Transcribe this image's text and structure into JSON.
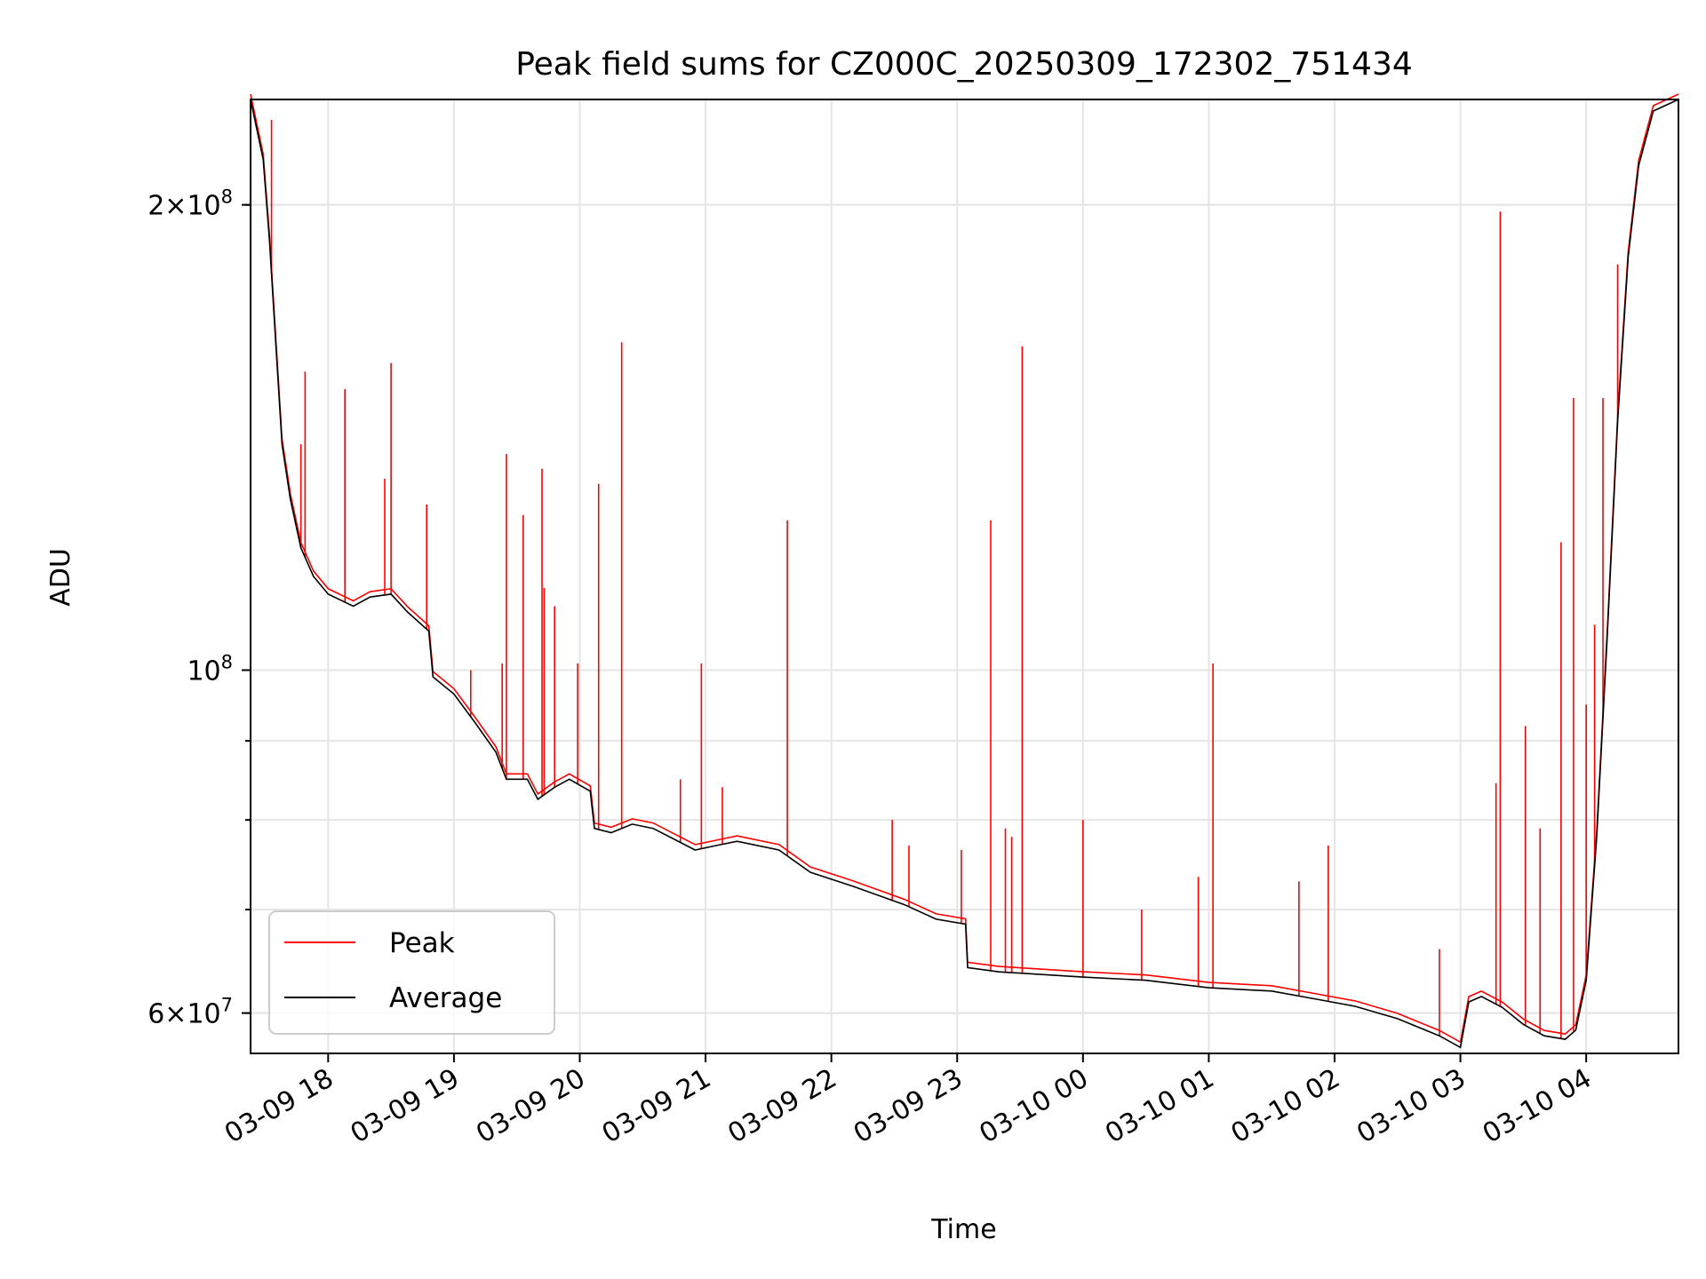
{
  "chart_data": {
    "type": "line",
    "title": "Peak field sums for CZ000C_20250309_172302_751434",
    "xlabel": "Time",
    "ylabel": "ADU",
    "x_scale": "time",
    "y_scale": "log",
    "xlim": [
      "2025-03-09 17:23",
      "2025-03-10 04:44"
    ],
    "ylim": [
      56500000,
      234000000
    ],
    "x_ticks": [
      {
        "value": "2025-03-09 18:00",
        "label": "03-09 18"
      },
      {
        "value": "2025-03-09 19:00",
        "label": "03-09 19"
      },
      {
        "value": "2025-03-09 20:00",
        "label": "03-09 20"
      },
      {
        "value": "2025-03-09 21:00",
        "label": "03-09 21"
      },
      {
        "value": "2025-03-09 22:00",
        "label": "03-09 22"
      },
      {
        "value": "2025-03-09 23:00",
        "label": "03-09 23"
      },
      {
        "value": "2025-03-10 00:00",
        "label": "03-10 00"
      },
      {
        "value": "2025-03-10 01:00",
        "label": "03-10 01"
      },
      {
        "value": "2025-03-10 02:00",
        "label": "03-10 02"
      },
      {
        "value": "2025-03-10 03:00",
        "label": "03-10 03"
      },
      {
        "value": "2025-03-10 04:00",
        "label": "03-10 04"
      }
    ],
    "y_major_ticks": [
      {
        "value": 60000000,
        "mant": "6",
        "exp": "7"
      },
      {
        "value": 100000000,
        "mant": "",
        "exp": "8"
      },
      {
        "value": 200000000,
        "mant": "2",
        "exp": "8"
      }
    ],
    "y_minor_ticks": [
      60000000,
      70000000,
      80000000,
      90000000,
      200000000
    ],
    "grid": true,
    "legend": {
      "position": "lower-left"
    },
    "series": [
      {
        "name": "Average",
        "color": "#000000",
        "points": [
          [
            "2025-03-09 17:23",
            234000000
          ],
          [
            "2025-03-09 17:29",
            214000000
          ],
          [
            "2025-03-09 17:32",
            190000000
          ],
          [
            "2025-03-09 17:35",
            163000000
          ],
          [
            "2025-03-09 17:38",
            140000000
          ],
          [
            "2025-03-09 17:42",
            129000000
          ],
          [
            "2025-03-09 17:47",
            120000000
          ],
          [
            "2025-03-09 17:53",
            115000000
          ],
          [
            "2025-03-09 18:00",
            112000000
          ],
          [
            "2025-03-09 18:12",
            110000000
          ],
          [
            "2025-03-09 18:20",
            111500000
          ],
          [
            "2025-03-09 18:30",
            112000000
          ],
          [
            "2025-03-09 18:38",
            109000000
          ],
          [
            "2025-03-09 18:48",
            106000000
          ],
          [
            "2025-03-09 18:50",
            99000000
          ],
          [
            "2025-03-09 19:00",
            96500000
          ],
          [
            "2025-03-09 19:10",
            92500000
          ],
          [
            "2025-03-09 19:20",
            88500000
          ],
          [
            "2025-03-09 19:25",
            85000000
          ],
          [
            "2025-03-09 19:35",
            85000000
          ],
          [
            "2025-03-09 19:40",
            82500000
          ],
          [
            "2025-03-09 19:48",
            84000000
          ],
          [
            "2025-03-09 19:55",
            85000000
          ],
          [
            "2025-03-09 20:05",
            83500000
          ],
          [
            "2025-03-09 20:07",
            79000000
          ],
          [
            "2025-03-09 20:15",
            78500000
          ],
          [
            "2025-03-09 20:25",
            79500000
          ],
          [
            "2025-03-09 20:35",
            79000000
          ],
          [
            "2025-03-09 20:55",
            76500000
          ],
          [
            "2025-03-09 21:05",
            77000000
          ],
          [
            "2025-03-09 21:15",
            77500000
          ],
          [
            "2025-03-09 21:35",
            76500000
          ],
          [
            "2025-03-09 21:50",
            74000000
          ],
          [
            "2025-03-09 22:10",
            72500000
          ],
          [
            "2025-03-09 22:35",
            70500000
          ],
          [
            "2025-03-09 22:50",
            69000000
          ],
          [
            "2025-03-09 23:04",
            68500000
          ],
          [
            "2025-03-09 23:05",
            64200000
          ],
          [
            "2025-03-09 23:20",
            63800000
          ],
          [
            "2025-03-10 00:00",
            63300000
          ],
          [
            "2025-03-10 00:30",
            63000000
          ],
          [
            "2025-03-10 01:00",
            62300000
          ],
          [
            "2025-03-10 01:30",
            62000000
          ],
          [
            "2025-03-10 01:50",
            61300000
          ],
          [
            "2025-03-10 02:10",
            60600000
          ],
          [
            "2025-03-10 02:30",
            59500000
          ],
          [
            "2025-03-10 02:50",
            58000000
          ],
          [
            "2025-03-10 03:00",
            57000000
          ],
          [
            "2025-03-10 03:04",
            61000000
          ],
          [
            "2025-03-10 03:10",
            61500000
          ],
          [
            "2025-03-10 03:20",
            60500000
          ],
          [
            "2025-03-10 03:30",
            59000000
          ],
          [
            "2025-03-10 03:40",
            58000000
          ],
          [
            "2025-03-10 03:50",
            57700000
          ],
          [
            "2025-03-10 03:55",
            58500000
          ],
          [
            "2025-03-10 04:00",
            63000000
          ],
          [
            "2025-03-10 04:05",
            78000000
          ],
          [
            "2025-03-10 04:10",
            105000000
          ],
          [
            "2025-03-10 04:15",
            145000000
          ],
          [
            "2025-03-10 04:20",
            185000000
          ],
          [
            "2025-03-10 04:25",
            212000000
          ],
          [
            "2025-03-10 04:32",
            230000000
          ],
          [
            "2025-03-10 04:44",
            234000000
          ]
        ]
      },
      {
        "name": "Peak",
        "color": "#ff0000",
        "spikes": [
          [
            "2025-03-09 17:33",
            227000000
          ],
          [
            "2025-03-09 17:47",
            140000000
          ],
          [
            "2025-03-09 17:49",
            156000000
          ],
          [
            "2025-03-09 18:08",
            152000000
          ],
          [
            "2025-03-09 18:27",
            133000000
          ],
          [
            "2025-03-09 18:30",
            158000000
          ],
          [
            "2025-03-09 18:47",
            128000000
          ],
          [
            "2025-03-09 19:08",
            100000000
          ],
          [
            "2025-03-09 19:23",
            101000000
          ],
          [
            "2025-03-09 19:25",
            138000000
          ],
          [
            "2025-03-09 19:33",
            126000000
          ],
          [
            "2025-03-09 19:42",
            135000000
          ],
          [
            "2025-03-09 19:43",
            113000000
          ],
          [
            "2025-03-09 19:48",
            110000000
          ],
          [
            "2025-03-09 19:59",
            101000000
          ],
          [
            "2025-03-09 20:09",
            132000000
          ],
          [
            "2025-03-09 20:20",
            163000000
          ],
          [
            "2025-03-09 20:48",
            85000000
          ],
          [
            "2025-03-09 20:58",
            101000000
          ],
          [
            "2025-03-09 21:08",
            84000000
          ],
          [
            "2025-03-09 21:39",
            125000000
          ],
          [
            "2025-03-09 22:29",
            80000000
          ],
          [
            "2025-03-09 22:37",
            77000000
          ],
          [
            "2025-03-09 23:02",
            76500000
          ],
          [
            "2025-03-09 23:16",
            125000000
          ],
          [
            "2025-03-09 23:23",
            79000000
          ],
          [
            "2025-03-09 23:26",
            78000000
          ],
          [
            "2025-03-09 23:31",
            162000000
          ],
          [
            "2025-03-10 00:00",
            80000000
          ],
          [
            "2025-03-10 00:28",
            70000000
          ],
          [
            "2025-03-10 00:55",
            73500000
          ],
          [
            "2025-03-10 01:02",
            101000000
          ],
          [
            "2025-03-10 01:43",
            73000000
          ],
          [
            "2025-03-10 01:57",
            77000000
          ],
          [
            "2025-03-10 02:50",
            66000000
          ],
          [
            "2025-03-10 03:17",
            84500000
          ],
          [
            "2025-03-10 03:19",
            198000000
          ],
          [
            "2025-03-10 03:31",
            92000000
          ],
          [
            "2025-03-10 03:38",
            79000000
          ],
          [
            "2025-03-10 03:48",
            121000000
          ],
          [
            "2025-03-10 03:54",
            150000000
          ],
          [
            "2025-03-10 04:00",
            95000000
          ],
          [
            "2025-03-10 04:04",
            107000000
          ],
          [
            "2025-03-10 04:08",
            150000000
          ],
          [
            "2025-03-10 04:15",
            183000000
          ]
        ]
      }
    ]
  }
}
